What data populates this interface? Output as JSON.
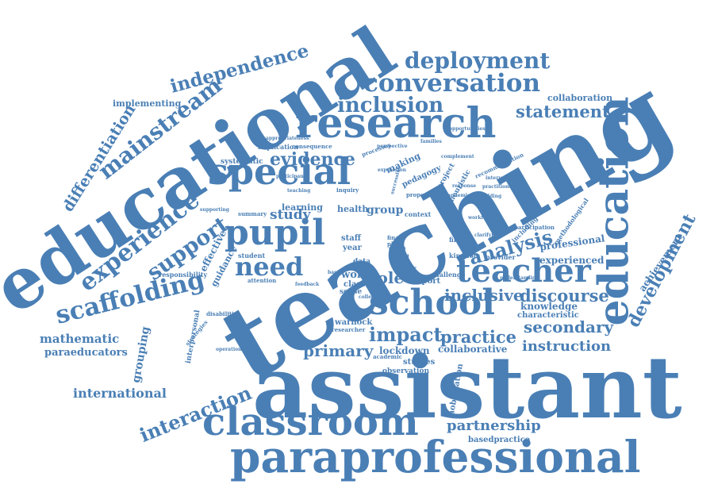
{
  "cloud": {
    "color": "#4a7fb5",
    "words": [
      {
        "key": "teaching",
        "text": "teaching"
      },
      {
        "key": "assistant",
        "text": "assistant"
      },
      {
        "key": "educational",
        "text": "educational"
      },
      {
        "key": "paraprofessional",
        "text": "paraprofessional"
      },
      {
        "key": "education",
        "text": "education"
      },
      {
        "key": "research",
        "text": "research"
      },
      {
        "key": "classroom",
        "text": "classroom"
      },
      {
        "key": "special",
        "text": "special"
      },
      {
        "key": "pupil",
        "text": "pupil"
      },
      {
        "key": "school",
        "text": "school"
      },
      {
        "key": "teacher",
        "text": "teacher"
      },
      {
        "key": "conversation",
        "text": "conversation"
      },
      {
        "key": "deployment",
        "text": "deployment"
      },
      {
        "key": "scaffolding",
        "text": "scaffolding"
      },
      {
        "key": "mainstream",
        "text": "mainstream"
      },
      {
        "key": "experience",
        "text": "experience"
      },
      {
        "key": "inclusion",
        "text": "inclusion"
      },
      {
        "key": "independence",
        "text": "independence"
      },
      {
        "key": "need",
        "text": "need"
      },
      {
        "key": "support",
        "text": "support"
      },
      {
        "key": "development",
        "text": "development"
      },
      {
        "key": "differentiation",
        "text": "differentiation"
      },
      {
        "key": "statement",
        "text": "statement"
      },
      {
        "key": "analysis",
        "text": "analysis"
      },
      {
        "key": "interaction",
        "text": "interaction"
      },
      {
        "key": "partnership",
        "text": "partnership"
      },
      {
        "key": "discourse",
        "text": "discourse"
      },
      {
        "key": "inclusive",
        "text": "inclusive"
      },
      {
        "key": "secondary",
        "text": "secondary"
      },
      {
        "key": "instruction",
        "text": "instruction"
      },
      {
        "key": "practice",
        "text": "practice"
      },
      {
        "key": "impact",
        "text": "impact"
      },
      {
        "key": "primary",
        "text": "primary"
      },
      {
        "key": "evidence",
        "text": "evidence"
      },
      {
        "key": "study",
        "text": "study"
      },
      {
        "key": "role",
        "text": "role"
      },
      {
        "key": "work",
        "text": "work"
      },
      {
        "key": "group",
        "text": "group"
      },
      {
        "key": "mathematic",
        "text": "mathematic"
      },
      {
        "key": "international",
        "text": "international"
      },
      {
        "key": "paraeducators",
        "text": "paraeducators"
      },
      {
        "key": "grouping",
        "text": "grouping"
      },
      {
        "key": "implementing",
        "text": "implementing"
      },
      {
        "key": "collaboration",
        "text": "collaboration"
      },
      {
        "key": "professional",
        "text": "professional"
      },
      {
        "key": "experienced",
        "text": "experienced"
      },
      {
        "key": "knowledge",
        "text": "knowledge"
      },
      {
        "key": "characteristic",
        "text": "characteristic"
      },
      {
        "key": "achievement",
        "text": "achievement"
      },
      {
        "key": "collaborative",
        "text": "collaborative"
      },
      {
        "key": "lockdown",
        "text": "lockdown"
      },
      {
        "key": "basedpractice",
        "text": "basedpractice"
      },
      {
        "key": "mobilization",
        "text": "mobilization"
      },
      {
        "key": "effective",
        "text": "effective"
      },
      {
        "key": "guidance",
        "text": "guidance"
      },
      {
        "key": "responsibility",
        "text": "responsibility"
      },
      {
        "key": "interpersonal",
        "text": "interpersonal"
      },
      {
        "key": "learning",
        "text": "learning"
      },
      {
        "key": "health",
        "text": "health"
      },
      {
        "key": "staff",
        "text": "staff"
      },
      {
        "key": "year",
        "text": "year"
      },
      {
        "key": "report",
        "text": "report"
      },
      {
        "key": "warnock",
        "text": "warnock"
      },
      {
        "key": "pedagogy",
        "text": "pedagogy"
      },
      {
        "key": "making",
        "text": "making"
      },
      {
        "key": "heuristic",
        "text": "heuristic"
      },
      {
        "key": "project",
        "text": "project"
      },
      {
        "key": "systematic",
        "text": "systematic"
      },
      {
        "key": "student",
        "text": "student"
      },
      {
        "key": "studies",
        "text": "studies"
      },
      {
        "key": "observation",
        "text": "observation"
      },
      {
        "key": "methodological",
        "text": "methodological"
      },
      {
        "key": "provider",
        "text": "provider"
      },
      {
        "key": "context",
        "text": "context"
      },
      {
        "key": "challenge",
        "text": "challenge"
      },
      {
        "key": "class",
        "text": "class"
      },
      {
        "key": "sense",
        "text": "sense"
      },
      {
        "key": "data",
        "text": "data"
      },
      {
        "key": "care",
        "text": "care"
      },
      {
        "key": "social",
        "text": "social"
      },
      {
        "key": "kingdom",
        "text": "kingdom"
      },
      {
        "key": "attention",
        "text": "attention"
      },
      {
        "key": "implication",
        "text": "implication"
      },
      {
        "key": "consequence",
        "text": "consequence"
      },
      {
        "key": "inquiry",
        "text": "inquiry"
      },
      {
        "key": "proposal",
        "text": "proposal"
      },
      {
        "key": "including",
        "text": "including"
      },
      {
        "key": "participation",
        "text": "participation"
      },
      {
        "key": "disabilities",
        "text": "disabilities"
      },
      {
        "key": "strategies",
        "text": "strategies"
      },
      {
        "key": "operationalise",
        "text": "operationalise"
      },
      {
        "key": "researcher",
        "text": "researcher"
      },
      {
        "key": "academic",
        "text": "academic"
      },
      {
        "key": "finding",
        "text": "finding"
      },
      {
        "key": "final",
        "text": "final"
      },
      {
        "key": "plan",
        "text": "plan"
      },
      {
        "key": "appropriateness",
        "text": "appropriateness"
      },
      {
        "key": "processes",
        "text": "processes"
      },
      {
        "key": "expression",
        "text": "expression"
      },
      {
        "key": "successful",
        "text": "successful"
      },
      {
        "key": "opportunities",
        "text": "opportunities"
      },
      {
        "key": "recommendation",
        "text": "recommendation"
      },
      {
        "key": "summary",
        "text": "summary"
      },
      {
        "key": "teaching_sm",
        "text": "teaching"
      },
      {
        "key": "supporting",
        "text": "supporting"
      },
      {
        "key": "building",
        "text": "building"
      },
      {
        "key": "workforce",
        "text": "workforce"
      },
      {
        "key": "clarifying",
        "text": "clarifying"
      },
      {
        "key": "understanding",
        "text": "understanding"
      },
      {
        "key": "pandemic",
        "text": "pandemic"
      },
      {
        "key": "intervention",
        "text": "intervention"
      },
      {
        "key": "response",
        "text": "response"
      },
      {
        "key": "feedback",
        "text": "feedback"
      },
      {
        "key": "college",
        "text": "college"
      },
      {
        "key": "factor",
        "text": "factor"
      },
      {
        "key": "based",
        "text": "based"
      },
      {
        "key": "practitioner",
        "text": "practitioner"
      },
      {
        "key": "perspective",
        "text": "perspective"
      },
      {
        "key": "families",
        "text": "families"
      },
      {
        "key": "complement",
        "text": "complement"
      },
      {
        "key": "participant",
        "text": "participant"
      }
    ]
  }
}
